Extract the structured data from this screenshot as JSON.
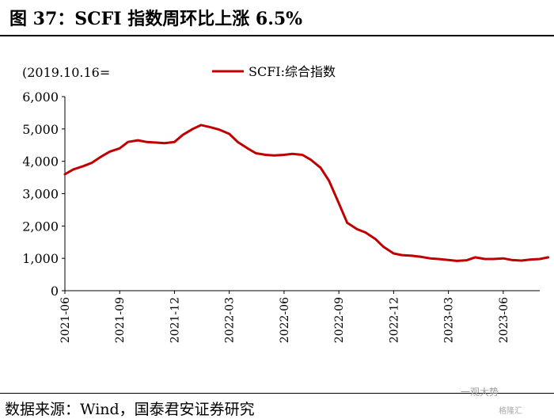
{
  "header": {
    "title": "图 37：SCFI 指数周环比上涨 6.5%"
  },
  "footer": {
    "source": "数据来源：Wind，国泰君安证券研究"
  },
  "watermark": {
    "line1": "一观大势",
    "line2": "格隆汇"
  },
  "chart_data": {
    "type": "line",
    "ylabel": "(2019.10.16=",
    "ylim": [
      0,
      6000
    ],
    "yticks": [
      0,
      1000,
      2000,
      3000,
      4000,
      5000,
      6000
    ],
    "ytick_labels": [
      "0",
      "1,000",
      "2,000",
      "3,000",
      "4,000",
      "5,000",
      "6,000"
    ],
    "xlim": [
      "2021-06",
      "2023-08"
    ],
    "xtick_labels": [
      "2021-06",
      "2021-09",
      "2021-12",
      "2022-03",
      "2022-06",
      "2022-09",
      "2022-12",
      "2023-03",
      "2023-06"
    ],
    "legend": "top-center",
    "grid": false,
    "series_color": "#c00000",
    "series": [
      {
        "name": "SCFI:综合指数",
        "x": [
          "2021-06-01",
          "2021-06-15",
          "2021-07-01",
          "2021-07-15",
          "2021-08-01",
          "2021-08-15",
          "2021-09-01",
          "2021-09-15",
          "2021-10-01",
          "2021-10-15",
          "2021-11-01",
          "2021-11-15",
          "2021-12-01",
          "2021-12-15",
          "2022-01-01",
          "2022-01-15",
          "2022-02-01",
          "2022-02-15",
          "2022-03-01",
          "2022-03-15",
          "2022-04-01",
          "2022-04-15",
          "2022-05-01",
          "2022-05-15",
          "2022-06-01",
          "2022-06-15",
          "2022-07-01",
          "2022-07-15",
          "2022-08-01",
          "2022-08-15",
          "2022-09-01",
          "2022-09-15",
          "2022-10-01",
          "2022-10-15",
          "2022-11-01",
          "2022-11-15",
          "2022-12-01",
          "2022-12-15",
          "2023-01-01",
          "2023-01-15",
          "2023-02-01",
          "2023-02-15",
          "2023-03-01",
          "2023-03-15",
          "2023-04-01",
          "2023-04-15",
          "2023-05-01",
          "2023-05-15",
          "2023-06-01",
          "2023-06-15",
          "2023-07-01",
          "2023-07-15",
          "2023-08-01",
          "2023-08-15"
        ],
        "values": [
          3600,
          3750,
          3850,
          3950,
          4150,
          4300,
          4400,
          4600,
          4650,
          4600,
          4580,
          4560,
          4600,
          4820,
          5000,
          5120,
          5050,
          4980,
          4850,
          4600,
          4400,
          4250,
          4200,
          4180,
          4200,
          4230,
          4200,
          4050,
          3800,
          3400,
          2700,
          2100,
          1900,
          1800,
          1600,
          1350,
          1150,
          1100,
          1080,
          1050,
          1000,
          980,
          950,
          920,
          940,
          1030,
          980,
          980,
          1000,
          950,
          930,
          960,
          980,
          1030
        ]
      }
    ]
  }
}
